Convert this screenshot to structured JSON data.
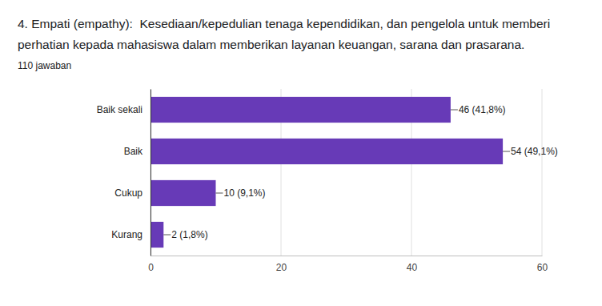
{
  "chart_data": {
    "type": "bar",
    "orientation": "horizontal",
    "title": "4. Empati (empathy):  Kesediaan/kepedulian tenaga kependidikan, dan pengelola untuk memberi perhatian kepada mahasiswa dalam memberikan layanan keuangan, sarana dan prasarana.",
    "subtitle": "110 jawaban",
    "categories": [
      "Baik sekali",
      "Baik",
      "Cukup",
      "Kurang"
    ],
    "values": [
      46,
      54,
      10,
      2
    ],
    "value_labels": [
      "46 (41,8%)",
      "54 (49,1%)",
      "10 (9,1%)",
      "2 (1,8%)"
    ],
    "color": "#673ab7",
    "xlim": [
      0,
      60
    ],
    "xticks": [
      0,
      20,
      40,
      60
    ],
    "grid": true,
    "data_labels": true
  }
}
